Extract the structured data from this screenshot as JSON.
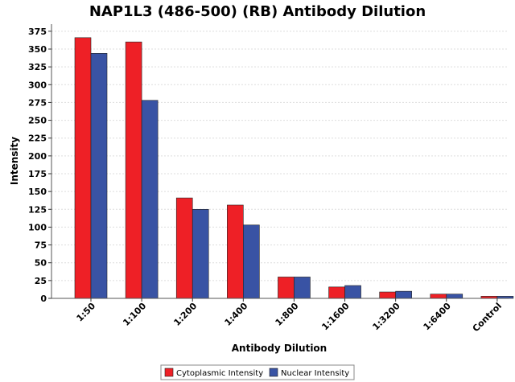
{
  "chart_data": {
    "type": "bar",
    "title": "NAP1L3 (486-500) (RB) Antibody Dilution",
    "xlabel": "Antibody Dilution",
    "ylabel": "Intensity",
    "categories": [
      "1:50",
      "1:100",
      "1:200",
      "1:400",
      "1:800",
      "1:1600",
      "1:3200",
      "1:6400",
      "Control"
    ],
    "series": [
      {
        "name": "Cytoplasmic Intensity",
        "color": "#ee2026",
        "values": [
          366,
          360,
          141,
          131,
          30,
          16,
          9,
          6,
          3
        ]
      },
      {
        "name": "Nuclear Intensity",
        "color": "#3953a4",
        "values": [
          344,
          278,
          125,
          103,
          30,
          18,
          10,
          6,
          3
        ]
      }
    ],
    "yticks": [
      0,
      25,
      50,
      75,
      100,
      125,
      150,
      175,
      200,
      225,
      250,
      275,
      300,
      325,
      350,
      375
    ],
    "ylim": [
      0,
      385
    ],
    "grid": true,
    "legend_position": "bottom"
  }
}
